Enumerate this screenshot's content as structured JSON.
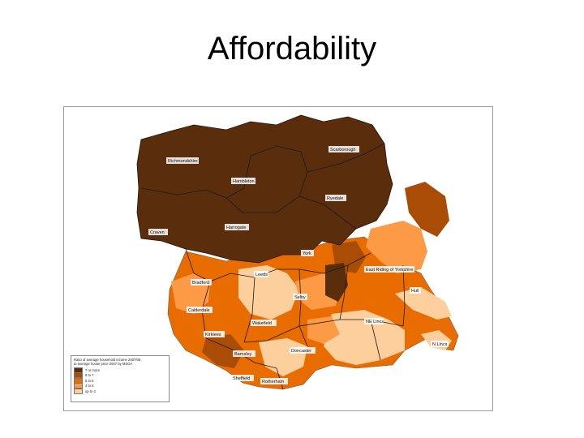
{
  "title": "Affordability",
  "map": {
    "region": "Yorkshire and the Humber",
    "places": [
      "Scarborough",
      "Richmondshire",
      "Hambleton",
      "Ryedale",
      "Harrogate",
      "Craven",
      "York",
      "East Riding of Yorkshire",
      "Leeds",
      "Bradford",
      "Selby",
      "Hull",
      "Calderdale",
      "Wakefield",
      "Kirklees",
      "NE Lincs",
      "Barnsley",
      "Doncaster",
      "Sheffield",
      "Rotherham",
      "N Lincs"
    ],
    "colors": {
      "dark": "#5a2d0c",
      "mid_dark": "#a84c06",
      "mid": "#e86c00",
      "light": "#fd9a45",
      "pale": "#fdcf9c"
    }
  },
  "legend": {
    "title_line1": "Ratio of average household income 2007/08",
    "title_line2": "to average house price 2007 by MSOA",
    "items": [
      {
        "label": "7 or more",
        "color": "#5a2d0c"
      },
      {
        "label": "6 to 7",
        "color": "#a84c06"
      },
      {
        "label": "5 to 6",
        "color": "#e86c00"
      },
      {
        "label": "4 to 5",
        "color": "#fd9a45"
      },
      {
        "label": "up to 4",
        "color": "#fdcf9c"
      }
    ]
  }
}
